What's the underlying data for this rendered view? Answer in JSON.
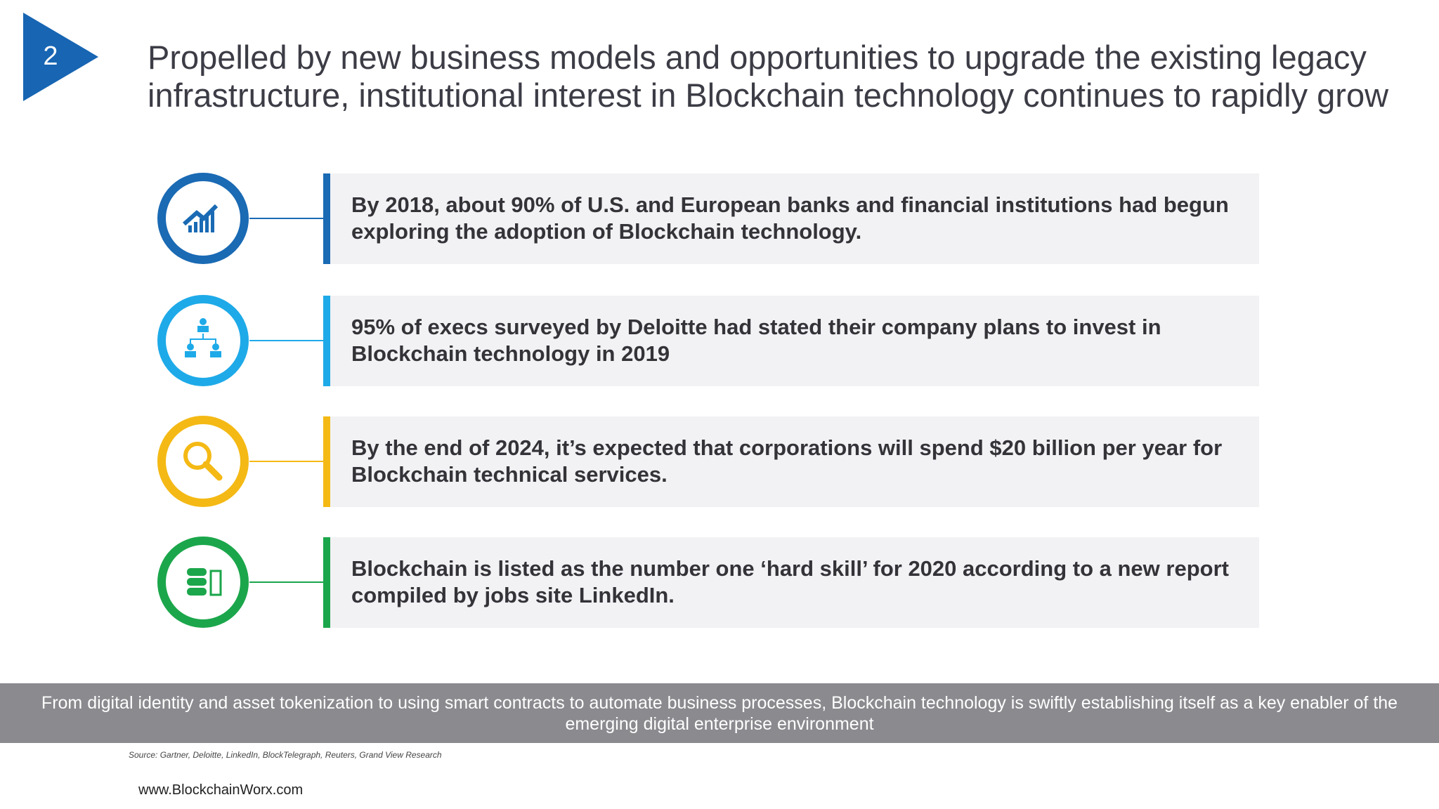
{
  "slide_number": "2",
  "title": [
    "Propelled by new business models and opportunities to upgrade the existing legacy",
    "infrastructure, institutional interest in Blockchain technology continues to rapidly grow"
  ],
  "items": [
    {
      "text": "By 2018, about 90% of U.S. and European banks and financial institutions had begun exploring the adoption of Blockchain technology.",
      "color": "#1a6ab4"
    },
    {
      "text": "95% of execs surveyed by Deloitte had stated their company plans to invest in Blockchain technology in 2019",
      "color": "#1eaae8"
    },
    {
      "text": "By the end of 2024, it’s expected that corporations will spend $20 billion per year for Blockchain technical services.",
      "color": "#f4b914"
    },
    {
      "text": "Blockchain is listed as the number one ‘hard skill’ for 2020 according to a new report compiled by jobs site LinkedIn.",
      "color": "#1ba64b"
    }
  ],
  "banner": "From digital identity and asset tokenization to using smart contracts to automate business processes, Blockchain technology is swiftly establishing itself as a key enabler of the emerging digital enterprise environment",
  "source": "Source: Gartner, Deloitte, LinkedIn, BlockTelegraph, Reuters, Grand View Research",
  "website": "www.BlockchainWorx.com"
}
